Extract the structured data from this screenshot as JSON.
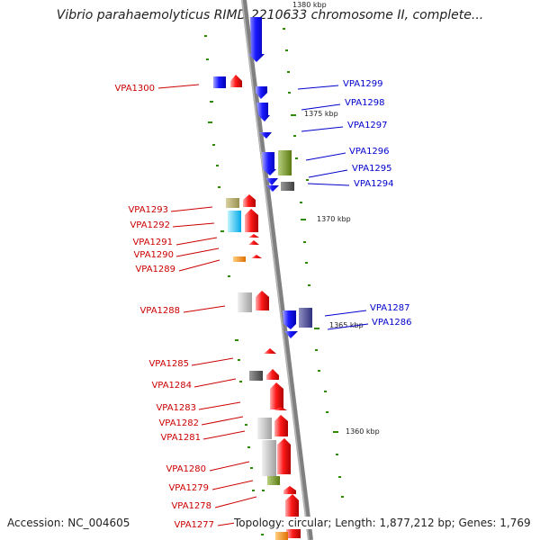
{
  "title": "Vibrio parahaemolyticus RIMD 2210633 chromosome II, complete...",
  "accession_text": "Accession: NC_004605",
  "summary_text": "Topology: circular; Length: 1,877,212 bp; Genes: 1,769",
  "colors": {
    "forward": "#ff0000",
    "reverse": "#0000ff",
    "backbone": "#808080",
    "tick": "#2e8b00",
    "forward_label": "#cc0000",
    "reverse_label": "#0000cc"
  },
  "scale_labels": [
    "1380 kbp",
    "1375 kbp",
    "1370 kbp",
    "1365 kbp",
    "1360 kbp"
  ],
  "right_labels": [
    "VPA1299",
    "VPA1298",
    "VPA1297",
    "VPA1296",
    "VPA1295",
    "VPA1294",
    "VPA1287",
    "VPA1286"
  ],
  "left_labels": [
    "VPA1300",
    "VPA1293",
    "VPA1292",
    "VPA1291",
    "VPA1290",
    "VPA1289",
    "VPA1288",
    "VPA1285",
    "VPA1284",
    "VPA1283",
    "VPA1282",
    "VPA1281",
    "VPA1280",
    "VPA1279",
    "VPA1278",
    "VPA1277"
  ]
}
